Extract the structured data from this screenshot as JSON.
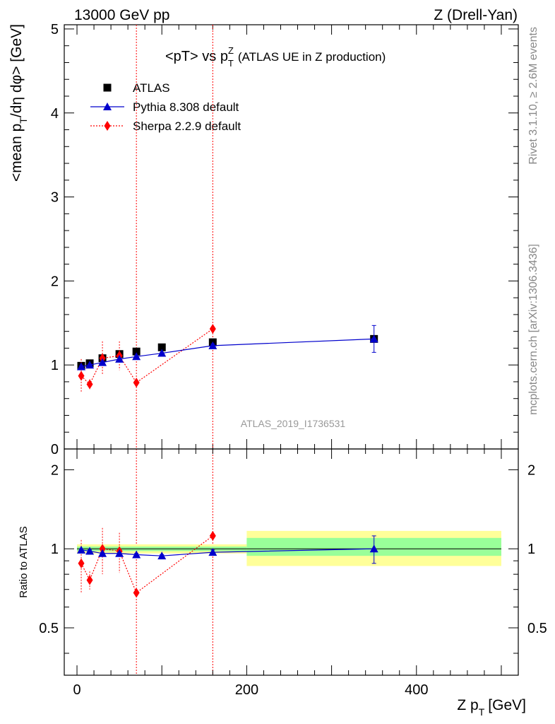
{
  "header": {
    "left": "13000 GeV pp",
    "right": "Z (Drell-Yan)"
  },
  "side_labels": {
    "rivet": "Rivet 3.1.10, ≥ 2.6M events",
    "mcplots": "mcplots.cern.ch [arXiv:1306.3436]"
  },
  "watermark": "ATLAS_2019_I1736531",
  "colors": {
    "atlas": "#000000",
    "pythia": "#0000cc",
    "sherpa": "#ff0000",
    "band_inner": "#99ff99",
    "band_outer": "#ffff99"
  },
  "chart_data": [
    {
      "type": "scatter",
      "panel": "main",
      "title": "<pT> vs pTZ (ATLAS UE in Z production)",
      "title_parts": {
        "main": "<pT> vs p",
        "sup": "Z",
        "sub": "T",
        "suffix": "(ATLAS UE in Z production)"
      },
      "ylabel": "<mean p_T/dη dφ> [GeV]",
      "ylabel_parts": {
        "pre": "<mean p",
        "sub": "T",
        "post": "/dη dφ> [GeV]"
      },
      "xlim": [
        -15,
        520
      ],
      "ylim": [
        0,
        5.05
      ],
      "yticks": [
        0,
        1,
        2,
        3,
        4,
        5
      ],
      "legend_position": "top-left",
      "series": [
        {
          "name": "ATLAS",
          "marker": "square",
          "color": "#000000",
          "x": [
            5,
            15,
            30,
            50,
            70,
            100,
            160,
            350
          ],
          "y": [
            0.99,
            1.02,
            1.08,
            1.13,
            1.16,
            1.21,
            1.27,
            1.31
          ],
          "err": [
            0.0,
            0.0,
            0.0,
            0.0,
            0.0,
            0.0,
            0.0,
            0.0
          ]
        },
        {
          "name": "Pythia 8.308 default",
          "marker": "triangle",
          "line": "solid",
          "color": "#0000cc",
          "x": [
            5,
            15,
            30,
            50,
            70,
            100,
            160,
            350
          ],
          "y": [
            0.98,
            1.0,
            1.03,
            1.07,
            1.1,
            1.14,
            1.23,
            1.31
          ],
          "err": [
            0.01,
            0.01,
            0.01,
            0.01,
            0.01,
            0.01,
            0.02,
            0.16
          ]
        },
        {
          "name": "Sherpa 2.2.9 default",
          "marker": "diamond",
          "line": "dotted",
          "color": "#ff0000",
          "x": [
            5,
            15,
            30,
            50,
            70,
            160
          ],
          "y": [
            0.87,
            0.77,
            1.08,
            1.11,
            0.79,
            1.43
          ],
          "err": [
            0.2,
            0.06,
            0.2,
            0.17,
            0.0,
            0.0
          ]
        }
      ]
    },
    {
      "type": "scatter",
      "panel": "ratio",
      "ylabel": "Ratio to ATLAS",
      "xlabel": "Z p_T [GeV]",
      "xlabel_parts": {
        "pre": "Z p",
        "sub": "T",
        "post": "[GeV]"
      },
      "xlim": [
        -15,
        520
      ],
      "xticks": [
        0,
        200,
        400
      ],
      "ylim": [
        0.33,
        2.4
      ],
      "yticks": [
        0.5,
        1,
        2
      ],
      "bands": [
        {
          "x": [
            0,
            200
          ],
          "inner": [
            0.98,
            1.02
          ],
          "outer": [
            0.96,
            1.04
          ]
        },
        {
          "x": [
            200,
            500
          ],
          "inner": [
            0.94,
            1.1
          ],
          "outer": [
            0.86,
            1.17
          ]
        }
      ],
      "series": [
        {
          "name": "Pythia 8.308 default",
          "color": "#0000cc",
          "x": [
            5,
            15,
            30,
            50,
            70,
            100,
            160,
            350
          ],
          "y": [
            0.99,
            0.98,
            0.96,
            0.96,
            0.95,
            0.94,
            0.97,
            1.0
          ],
          "err": [
            0.01,
            0.01,
            0.01,
            0.01,
            0.01,
            0.01,
            0.02,
            0.12
          ]
        },
        {
          "name": "Sherpa 2.2.9 default",
          "color": "#ff0000",
          "x": [
            5,
            15,
            30,
            50,
            70,
            160
          ],
          "y": [
            0.88,
            0.76,
            1.0,
            0.98,
            0.68,
            1.12
          ],
          "err": [
            0.2,
            0.06,
            0.2,
            0.17,
            0.0,
            0.0
          ]
        }
      ]
    }
  ]
}
